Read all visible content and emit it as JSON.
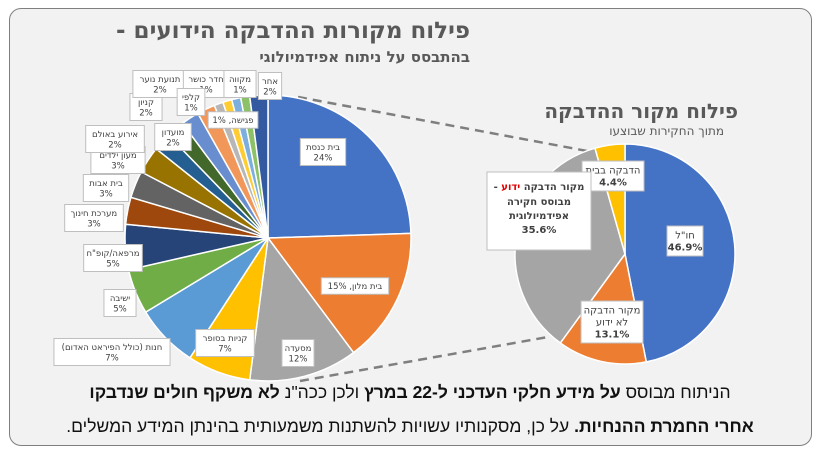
{
  "chart_data": [
    {
      "type": "pie",
      "title": "פילוח מקורות ההדבקה הידועים -",
      "subtitle": "בהתבסס על ניתוח אפידמיולוגי",
      "slices": [
        {
          "label": "בית כנסת",
          "value": 24,
          "text": "24%",
          "color": "#4472c4"
        },
        {
          "label": "בית מלון",
          "value": 15,
          "text": "15%",
          "color": "#ed7d31",
          "inline": true
        },
        {
          "label": "מסעדה",
          "value": 12,
          "text": "12%",
          "color": "#a5a5a5"
        },
        {
          "label": "קניות בסופר",
          "value": 7,
          "text": "7%",
          "color": "#ffc000"
        },
        {
          "label": "חנות (כולל הפיראט האדום)",
          "value": 7,
          "text": "7%",
          "color": "#5b9bd5"
        },
        {
          "label": "ישיבה",
          "value": 5,
          "text": "5%",
          "color": "#70ad47"
        },
        {
          "label": "מרפאה/קופ\"ח",
          "value": 5,
          "text": "5%",
          "color": "#264478"
        },
        {
          "label": "מערכת חינוך",
          "value": 3,
          "text": "3%",
          "color": "#9e480e"
        },
        {
          "label": "בית אבות",
          "value": 3,
          "text": "3%",
          "color": "#636363"
        },
        {
          "label": "מעון ילדים",
          "value": 3,
          "text": "3%",
          "color": "#997300"
        },
        {
          "label": "אירוע באולם",
          "value": 2,
          "text": "2%",
          "color": "#255e91"
        },
        {
          "label": "מועדון",
          "value": 2,
          "text": "2%",
          "color": "#43682b"
        },
        {
          "label": "קניון",
          "value": 2,
          "text": "2%",
          "color": "#698ed0"
        },
        {
          "label": "תנועת נוער",
          "value": 2,
          "text": "2%",
          "color": "#f1975a"
        },
        {
          "label": "חדר כושר",
          "value": 1,
          "text": "1%",
          "color": "#b7b7b7"
        },
        {
          "label": "קלפי",
          "value": 1,
          "text": "1%",
          "color": "#ffcd33"
        },
        {
          "label": "פגישה",
          "value": 1,
          "text": "1%",
          "color": "#7cafdd",
          "inline": true
        },
        {
          "label": "מקווה",
          "value": 1,
          "text": "1%",
          "color": "#8cc168"
        },
        {
          "label": "אחר",
          "value": 2,
          "text": "2%",
          "color": "#335aa1"
        }
      ]
    },
    {
      "type": "pie",
      "title": "פילוח מקור ההדבקה",
      "subtitle": "מתוך החקירות שבוצעו",
      "slices": [
        {
          "label": "חו\"ל",
          "value": 46.9,
          "text": "46.9%",
          "color": "#4472c4"
        },
        {
          "label": "מקור הדבקה לא ידוע",
          "value": 13.1,
          "text": "13.1%",
          "color": "#ed7d31"
        },
        {
          "label": "מקור הדבקה ידוע - מבוסס חקירה אפידמיולוגית",
          "value": 35.6,
          "text": "35.6%",
          "color": "#a5a5a5"
        },
        {
          "label": "הדבקה בבית",
          "value": 4.4,
          "text": "4.4%",
          "color": "#ffc000"
        }
      ],
      "highlight_word": "ידוע",
      "highlight_color": "#e00000"
    }
  ],
  "footer": {
    "line1": [
      {
        "text": "הניתוח מבוסס ",
        "bold": false
      },
      {
        "text": "על מידע חלקי העדכני ל-22 במרץ",
        "bold": true
      },
      {
        "text": " ולכן ככה\"נ ",
        "bold": false
      },
      {
        "text": "לא משקף חולים שנדבקו",
        "bold": true
      }
    ],
    "line2": [
      {
        "text": "אחרי החמרת ההנחיות.",
        "bold": true
      },
      {
        "text": " על כן, מסקנותיו עשויות להשתנות משמעותית בהינתן המידע המשלים.",
        "bold": false
      }
    ]
  }
}
